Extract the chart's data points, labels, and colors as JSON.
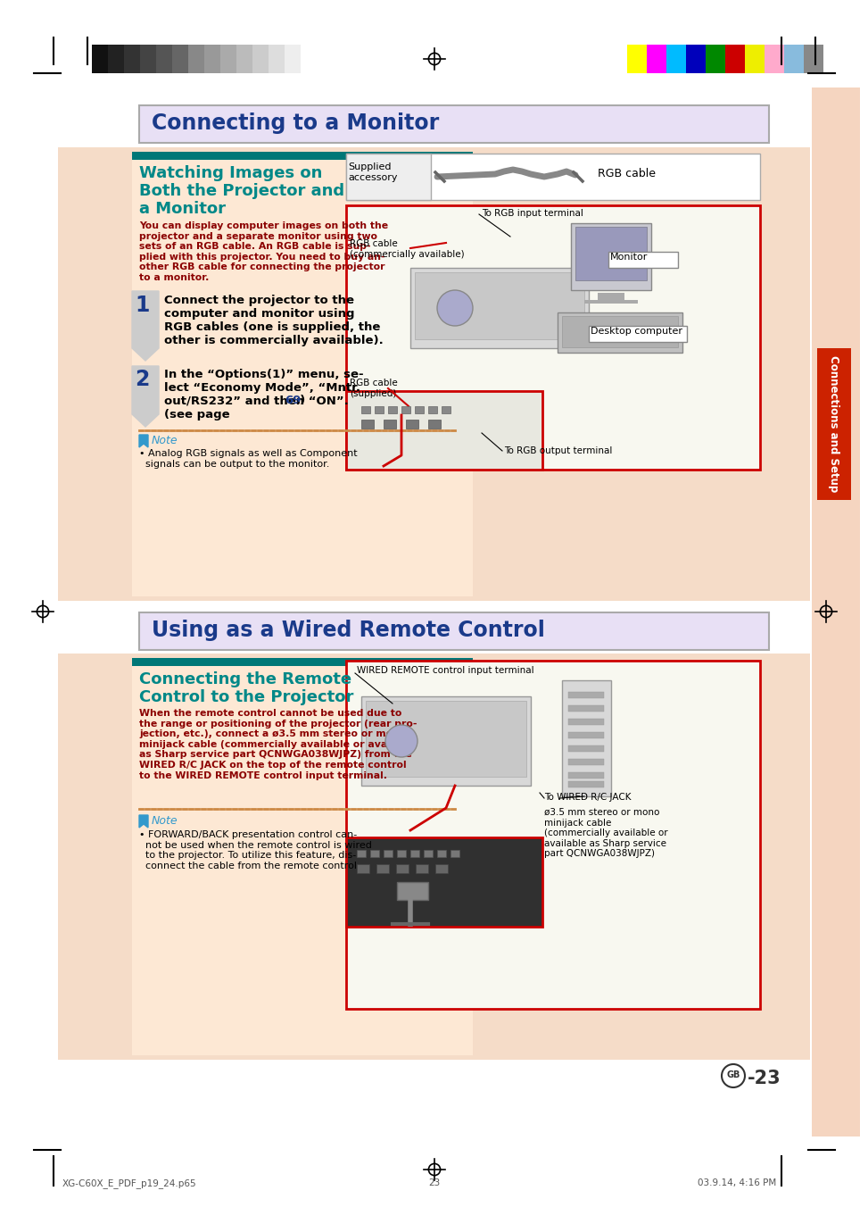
{
  "page_bg": "#ffffff",
  "right_tab_color": "#f5d5c0",
  "right_tab_text": "Connections and Setup",
  "right_tab_text_color": "#ffffff",
  "right_tab_bg": "#cc2200",
  "header_bar_colors_left": [
    "#111111",
    "#222222",
    "#333333",
    "#444444",
    "#555555",
    "#666666",
    "#888888",
    "#999999",
    "#aaaaaa",
    "#bbbbbb",
    "#cccccc",
    "#dddddd",
    "#eeeeee",
    "#ffffff"
  ],
  "header_bar_colors_right": [
    "#ffff00",
    "#ff00ff",
    "#00bbff",
    "#0000bb",
    "#008800",
    "#cc0000",
    "#eeee00",
    "#ffaacc",
    "#88bbdd",
    "#888888"
  ],
  "section1_title": "Connecting to a Monitor",
  "section1_title_color": "#1a3a8a",
  "section1_title_bg": "#e8e0f5",
  "subsection1_header_bg": "#007777",
  "subsection1_bg": "#fde8d4",
  "content_bg": "#f5dcc8",
  "sub1_line1": "Watching Images on",
  "sub1_line2": "Both the Projector and",
  "sub1_line3": "a Monitor",
  "sub1_title_color": "#008888",
  "body1": "You can display computer images on both the\nprojector and a separate monitor using two\nsets of an RGB cable. An RGB cable is sup-\nplied with this projector. You need to buy an-\nother RGB cable for connecting the projector\nto a monitor.",
  "body1_color": "#8B0000",
  "step1_text": "Connect the projector to the\ncomputer and monitor using\nRGB cables (one is supplied, the\nother is commercially available).",
  "step2_text": "In the “Options(1)” menu, se-\nlect “Economy Mode”, “Mntr.\nout/RS232” and then “ON”.\n(see page ",
  "step2_page": "69",
  "step2_end": ".)",
  "step_number_color": "#1a3a8a",
  "step_text_color": "#000000",
  "note1_label": "Note",
  "note1_color": "#3399cc",
  "note1_bullet": "• Analog RGB signals as well as Component\n  signals can be output to the monitor.",
  "supplied_label": "Supplied\naccessory",
  "rgb_label": "RGB cable",
  "to_rgb_input": "To RGB input terminal",
  "rgb_comm": "RGB cable\n(commercially available)",
  "monitor_label": "Monitor",
  "desktop_label": "Desktop computer",
  "rgb_supplied": "RGB cable\n(supplied)",
  "to_rgb_output": "To RGB output terminal",
  "section2_title": "Using as a Wired Remote Control",
  "section2_title_color": "#1a3a8a",
  "section2_title_bg": "#e8e0f5",
  "subsection2_header_bg": "#007777",
  "subsection2_bg": "#fde8d4",
  "sub2_line1": "Connecting the Remote",
  "sub2_line2": "Control to the Projector",
  "sub2_title_color": "#008888",
  "body2": "When the remote control cannot be used due to\nthe range or positioning of the projector (rear pro-\njection, etc.), connect a ø3.5 mm stereo or mono\nminijack cable (commercially available or available\nas Sharp service part QCNWGA038WJPZ) from the\nWIRED R/C JACK on the top of the remote control\nto the WIRED REMOTE control input terminal.",
  "body2_color": "#8B0000",
  "note2_label": "Note",
  "note2_color": "#3399cc",
  "note2_bullet": "• FORWARD/BACK presentation control can-\n  not be used when the remote control is wired\n  to the projector. To utilize this feature, dis-\n  connect the cable from the remote control.",
  "wired_remote_label": "WIRED REMOTE control input terminal",
  "to_wired_rj": "To WIRED R/C JACK",
  "minijack_desc": "ø3.5 mm stereo or mono\nminijack cable\n(commercially available or\navailable as Sharp service\npart QCNWGA038WJPZ)",
  "page_number": "-23",
  "gb_label": "GB",
  "footer_left": "XG-C60X_E_PDF_p19_24.p65",
  "footer_center": "23",
  "footer_right": "03.9.14, 4:16 PM"
}
